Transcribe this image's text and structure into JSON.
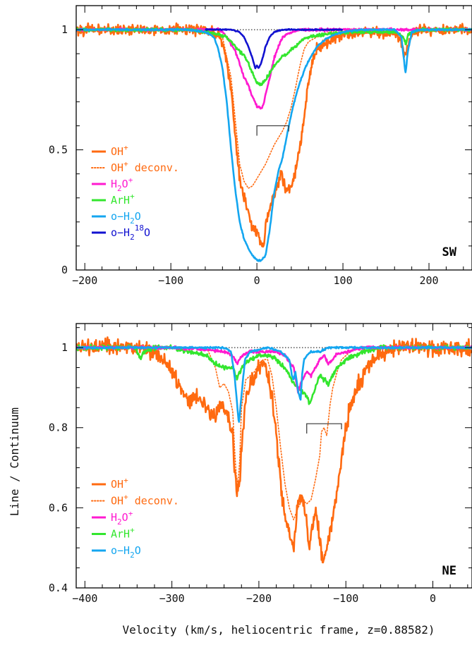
{
  "chart_data": [
    {
      "type": "line",
      "panel_label": "SW",
      "xlim": [
        -210,
        250
      ],
      "ylim": [
        0,
        1.1
      ],
      "xticks": [
        -200,
        -100,
        0,
        100,
        200
      ],
      "xtick_labels": [
        "−200",
        "−100",
        "0",
        "100",
        "200"
      ],
      "yticks": [
        0,
        0.5,
        1
      ],
      "ytick_labels": [
        "0",
        "0.5",
        "1"
      ],
      "continuum_level": 1,
      "bracket": {
        "x_start": 0,
        "x_end": 37,
        "y": 0.6
      },
      "legend": [
        {
          "label": "OH+",
          "text": "OH",
          "sup": "+",
          "sub": "",
          "post": "",
          "color": "#ff6a10",
          "dash": false
        },
        {
          "label": "OH+ deconv.",
          "text": "OH",
          "sup": "+",
          "sub": "",
          "post": " deconv.",
          "color": "#ff6a10",
          "dash": true
        },
        {
          "label": "H2O+",
          "text": "H",
          "sub": "2",
          "mid": "O",
          "sup": "+",
          "post": "",
          "color": "#ff1ad0",
          "dash": false
        },
        {
          "label": "ArH+",
          "text": "ArH",
          "sup": "+",
          "sub": "",
          "post": "",
          "color": "#33e62e",
          "dash": false
        },
        {
          "label": "o-H2O",
          "text": "o−H",
          "sub": "2",
          "mid": "O",
          "sup": "",
          "post": "",
          "color": "#14a6f0",
          "dash": false
        },
        {
          "label": "o-H2 18O",
          "text": "o−H",
          "sub": "2",
          "sup": "18",
          "mid": "O",
          "post": "",
          "color": "#1212d0",
          "dash": false,
          "iso": true
        }
      ],
      "series": [
        {
          "name": "OH+",
          "color": "#ff6a10",
          "width": 2.6,
          "noise": 0.02,
          "x": [
            -210,
            -80,
            -60,
            -50,
            -45,
            -40,
            -35,
            -30,
            -25,
            -20,
            -15,
            -10,
            -5,
            0,
            5,
            8,
            10,
            15,
            20,
            25,
            28,
            30,
            35,
            40,
            45,
            50,
            55,
            60,
            65,
            70,
            75,
            80,
            90,
            100,
            110,
            120,
            130,
            140,
            150,
            160,
            165,
            170,
            172,
            175,
            180,
            190,
            200,
            210,
            220,
            230,
            240,
            250
          ],
          "y": [
            1.0,
            1.0,
            1.0,
            0.99,
            0.98,
            0.94,
            0.87,
            0.75,
            0.55,
            0.38,
            0.3,
            0.24,
            0.17,
            0.16,
            0.12,
            0.1,
            0.19,
            0.26,
            0.31,
            0.36,
            0.42,
            0.37,
            0.33,
            0.34,
            0.42,
            0.52,
            0.64,
            0.78,
            0.88,
            0.92,
            0.93,
            0.94,
            0.97,
            0.98,
            0.985,
            0.99,
            0.99,
            0.99,
            0.985,
            0.98,
            0.97,
            0.92,
            0.88,
            0.93,
            0.98,
            1.0,
            1.0,
            1.0,
            1.0,
            1.0,
            1.0,
            1.0
          ]
        },
        {
          "name": "OH+ deconv.",
          "color": "#ff6a10",
          "width": 1.6,
          "dotted": true,
          "noise": 0,
          "x": [
            -60,
            -40,
            -30,
            -25,
            -20,
            -15,
            -10,
            -5,
            0,
            5,
            10,
            15,
            20,
            25,
            30,
            35,
            40,
            45,
            50,
            55,
            60,
            65,
            70,
            80,
            90,
            100
          ],
          "y": [
            1.0,
            0.97,
            0.8,
            0.62,
            0.44,
            0.37,
            0.34,
            0.35,
            0.38,
            0.41,
            0.44,
            0.48,
            0.52,
            0.55,
            0.58,
            0.62,
            0.68,
            0.76,
            0.85,
            0.92,
            0.95,
            0.96,
            0.97,
            0.985,
            0.995,
            1.0
          ]
        },
        {
          "name": "H2O+",
          "color": "#ff1ad0",
          "width": 2.6,
          "noise": 0.005,
          "x": [
            -210,
            -60,
            -45,
            -40,
            -35,
            -30,
            -25,
            -20,
            -15,
            -10,
            -5,
            0,
            5,
            8,
            10,
            15,
            20,
            25,
            30,
            40,
            50,
            60,
            80,
            100,
            150,
            200,
            250
          ],
          "y": [
            1.0,
            1.0,
            1.0,
            0.99,
            0.97,
            0.94,
            0.91,
            0.86,
            0.8,
            0.77,
            0.72,
            0.68,
            0.67,
            0.69,
            0.73,
            0.8,
            0.88,
            0.93,
            0.97,
            0.99,
            1.0,
            1.0,
            1.0,
            1.0,
            1.0,
            1.0,
            1.0
          ]
        },
        {
          "name": "ArH+",
          "color": "#33e62e",
          "width": 2.6,
          "noise": 0.006,
          "x": [
            -210,
            -80,
            -60,
            -45,
            -35,
            -30,
            -25,
            -20,
            -15,
            -10,
            -5,
            0,
            5,
            10,
            15,
            20,
            25,
            30,
            35,
            40,
            45,
            50,
            55,
            60,
            80,
            100,
            130,
            160,
            170,
            173,
            176,
            180,
            190,
            200,
            220,
            250
          ],
          "y": [
            1.0,
            1.0,
            0.99,
            0.98,
            0.97,
            0.95,
            0.93,
            0.91,
            0.89,
            0.86,
            0.82,
            0.78,
            0.77,
            0.79,
            0.82,
            0.85,
            0.87,
            0.89,
            0.9,
            0.92,
            0.93,
            0.95,
            0.96,
            0.97,
            0.98,
            0.99,
            0.99,
            0.99,
            0.97,
            0.94,
            0.98,
            0.99,
            1.0,
            1.0,
            1.0,
            1.0
          ]
        },
        {
          "name": "o-H2O",
          "color": "#14a6f0",
          "width": 2.6,
          "noise": 0.003,
          "x": [
            -210,
            -80,
            -60,
            -50,
            -45,
            -40,
            -35,
            -30,
            -25,
            -20,
            -15,
            -10,
            -5,
            0,
            5,
            10,
            15,
            20,
            25,
            30,
            35,
            40,
            45,
            50,
            55,
            60,
            65,
            70,
            80,
            90,
            100,
            120,
            160,
            168,
            170,
            172,
            173,
            175,
            180,
            190,
            200,
            250
          ],
          "y": [
            1.0,
            1.0,
            0.99,
            0.97,
            0.92,
            0.84,
            0.7,
            0.5,
            0.33,
            0.2,
            0.13,
            0.09,
            0.06,
            0.04,
            0.04,
            0.06,
            0.17,
            0.32,
            0.41,
            0.47,
            0.56,
            0.65,
            0.72,
            0.78,
            0.83,
            0.87,
            0.9,
            0.93,
            0.96,
            0.98,
            0.99,
            1.0,
            1.0,
            0.97,
            0.9,
            0.84,
            0.82,
            0.9,
            0.99,
            1.0,
            1.0,
            1.0
          ]
        },
        {
          "name": "o-H2 18O",
          "color": "#1212d0",
          "width": 2.6,
          "noise": 0.002,
          "x": [
            -60,
            -30,
            -20,
            -15,
            -10,
            -5,
            -2,
            0,
            2,
            5,
            8,
            10,
            15,
            20,
            30,
            40,
            60,
            100
          ],
          "y": [
            1.0,
            1.0,
            0.99,
            0.97,
            0.93,
            0.88,
            0.84,
            0.85,
            0.84,
            0.86,
            0.9,
            0.93,
            0.97,
            0.99,
            1.0,
            1.0,
            1.0,
            1.0
          ]
        }
      ]
    },
    {
      "type": "line",
      "panel_label": "NE",
      "xlim": [
        -410,
        45
      ],
      "ylim": [
        0.4,
        1.06
      ],
      "xticks": [
        -400,
        -300,
        -200,
        -100,
        0
      ],
      "xtick_labels": [
        "−400",
        "−300",
        "−200",
        "−100",
        "0"
      ],
      "yticks": [
        0.4,
        0.6,
        0.8,
        1
      ],
      "ytick_labels": [
        "0.4",
        "0.6",
        "0.8",
        "1"
      ],
      "continuum_level": 1,
      "bracket": {
        "x_start": -145,
        "x_end": -105,
        "y": 0.81
      },
      "legend": [
        {
          "label": "OH+",
          "text": "OH",
          "sup": "+",
          "sub": "",
          "post": "",
          "color": "#ff6a10",
          "dash": false
        },
        {
          "label": "OH+ deconv.",
          "text": "OH",
          "sup": "+",
          "sub": "",
          "post": " deconv.",
          "color": "#ff6a10",
          "dash": true
        },
        {
          "label": "H2O+",
          "text": "H",
          "sub": "2",
          "mid": "O",
          "sup": "+",
          "post": "",
          "color": "#ff1ad0",
          "dash": false
        },
        {
          "label": "ArH+",
          "text": "ArH",
          "sup": "+",
          "sub": "",
          "post": "",
          "color": "#33e62e",
          "dash": false
        },
        {
          "label": "o-H2O",
          "text": "o−H",
          "sub": "2",
          "mid": "O",
          "sup": "",
          "post": "",
          "color": "#14a6f0",
          "dash": false
        }
      ],
      "series": [
        {
          "name": "OH+",
          "color": "#ff6a10",
          "width": 2.6,
          "noise": 0.018,
          "x": [
            -410,
            -340,
            -320,
            -310,
            -300,
            -290,
            -280,
            -270,
            -260,
            -250,
            -245,
            -240,
            -235,
            -230,
            -228,
            -225,
            -222,
            -220,
            -215,
            -210,
            -205,
            -200,
            -195,
            -190,
            -185,
            -180,
            -175,
            -170,
            -165,
            -160,
            -158,
            -155,
            -150,
            -145,
            -142,
            -140,
            -135,
            -130,
            -128,
            -125,
            -120,
            -115,
            -110,
            -105,
            -100,
            -95,
            -90,
            -85,
            -80,
            -75,
            -70,
            -60,
            -50,
            -40,
            -30,
            -20,
            -10,
            0,
            20,
            45
          ],
          "y": [
            1.0,
            1.0,
            0.99,
            0.97,
            0.94,
            0.9,
            0.87,
            0.88,
            0.85,
            0.83,
            0.86,
            0.85,
            0.82,
            0.77,
            0.7,
            0.64,
            0.66,
            0.75,
            0.87,
            0.91,
            0.93,
            0.95,
            0.96,
            0.94,
            0.88,
            0.78,
            0.66,
            0.57,
            0.53,
            0.5,
            0.55,
            0.61,
            0.63,
            0.56,
            0.49,
            0.53,
            0.6,
            0.52,
            0.49,
            0.46,
            0.52,
            0.58,
            0.64,
            0.72,
            0.8,
            0.85,
            0.88,
            0.91,
            0.93,
            0.95,
            0.97,
            0.985,
            0.99,
            1.0,
            1.0,
            1.0,
            1.0,
            1.0,
            1.0,
            1.0
          ]
        },
        {
          "name": "OH+ deconv.",
          "color": "#ff6a10",
          "width": 1.6,
          "dotted": true,
          "noise": 0,
          "x": [
            -260,
            -250,
            -245,
            -240,
            -235,
            -230,
            -228,
            -226,
            -224,
            -222,
            -220,
            -215,
            -210,
            -205,
            -200,
            -195,
            -190,
            -185,
            -180,
            -175,
            -170,
            -165,
            -160,
            -155,
            -150,
            -145,
            -140,
            -135,
            -130,
            -128,
            -125,
            -122,
            -120,
            -118,
            -115,
            -110,
            -105,
            -100,
            -95,
            -90
          ],
          "y": [
            1.0,
            0.95,
            0.9,
            0.91,
            0.89,
            0.84,
            0.75,
            0.68,
            0.66,
            0.72,
            0.85,
            0.92,
            0.93,
            0.94,
            0.96,
            0.97,
            0.97,
            0.93,
            0.85,
            0.75,
            0.66,
            0.6,
            0.57,
            0.6,
            0.62,
            0.61,
            0.62,
            0.67,
            0.73,
            0.79,
            0.8,
            0.78,
            0.82,
            0.86,
            0.9,
            0.94,
            0.97,
            0.98,
            0.99,
            1.0
          ]
        },
        {
          "name": "ArH+",
          "color": "#33e62e",
          "width": 2.6,
          "noise": 0.005,
          "x": [
            -410,
            -345,
            -340,
            -336,
            -332,
            -320,
            -300,
            -280,
            -260,
            -250,
            -240,
            -230,
            -225,
            -220,
            -210,
            -200,
            -190,
            -180,
            -170,
            -165,
            -160,
            -155,
            -150,
            -145,
            -142,
            -140,
            -135,
            -130,
            -125,
            -120,
            -115,
            -110,
            -100,
            -90,
            -80,
            -60,
            -40,
            0,
            45
          ],
          "y": [
            1.0,
            1.0,
            0.99,
            0.97,
            0.99,
            1.0,
            1.0,
            0.99,
            0.98,
            0.96,
            0.95,
            0.95,
            0.92,
            0.95,
            0.97,
            0.98,
            0.98,
            0.97,
            0.95,
            0.93,
            0.91,
            0.9,
            0.89,
            0.88,
            0.86,
            0.87,
            0.9,
            0.93,
            0.92,
            0.91,
            0.93,
            0.95,
            0.97,
            0.98,
            0.99,
            1.0,
            1.0,
            1.0,
            1.0
          ]
        },
        {
          "name": "H2O+",
          "color": "#ff1ad0",
          "width": 2.6,
          "noise": 0.003,
          "x": [
            -410,
            -300,
            -260,
            -240,
            -230,
            -225,
            -220,
            -210,
            -200,
            -180,
            -170,
            -160,
            -155,
            -150,
            -145,
            -140,
            -135,
            -130,
            -125,
            -120,
            -115,
            -110,
            -100,
            -80,
            -40,
            45
          ],
          "y": [
            1.0,
            1.0,
            0.995,
            0.99,
            0.98,
            0.96,
            0.98,
            0.99,
            0.99,
            0.99,
            0.98,
            0.95,
            0.89,
            0.92,
            0.94,
            0.93,
            0.95,
            0.97,
            0.98,
            0.96,
            0.97,
            0.985,
            0.99,
            1.0,
            1.0,
            1.0
          ]
        },
        {
          "name": "o-H2O",
          "color": "#14a6f0",
          "width": 2.6,
          "noise": 0.002,
          "x": [
            -410,
            -240,
            -232,
            -228,
            -225,
            -223,
            -220,
            -216,
            -210,
            -190,
            -175,
            -165,
            -162,
            -160,
            -158,
            -155,
            -152,
            -150,
            -148,
            -145,
            -140,
            -130,
            -120,
            -100,
            -80,
            -40,
            45
          ],
          "y": [
            1.0,
            1.0,
            0.99,
            0.93,
            0.86,
            0.81,
            0.88,
            0.97,
            0.99,
            1.0,
            0.99,
            0.97,
            0.93,
            0.92,
            0.94,
            0.89,
            0.87,
            0.94,
            0.97,
            0.98,
            0.99,
            0.99,
            1.0,
            1.0,
            1.0,
            1.0,
            1.0
          ]
        }
      ]
    }
  ],
  "ylabel": "Line / Continuum",
  "xlabel": "Velocity (km/s, heliocentric frame, z=0.88582)"
}
